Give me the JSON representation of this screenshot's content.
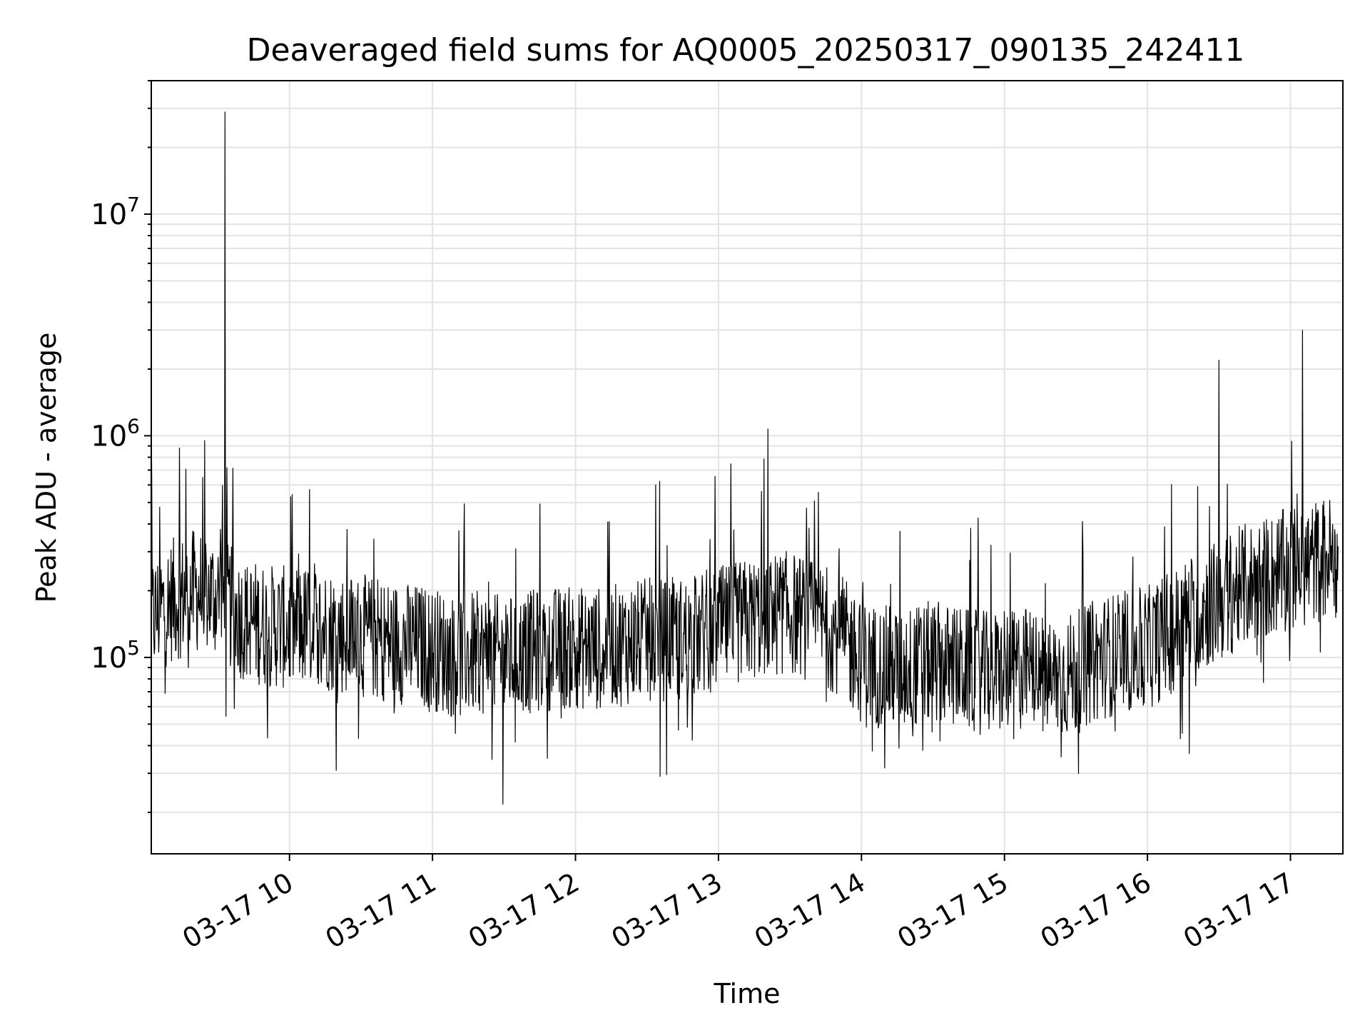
{
  "chart_data": {
    "type": "line",
    "title": "Deaveraged field sums for AQ0005_20250317_090135_242411",
    "xlabel": "Time",
    "ylabel": "Peak ADU - average",
    "yscale": "log",
    "ylim": [
      13000,
      40000000
    ],
    "xlim": [
      "2025-03-17 09:02",
      "2025-03-17 17:22"
    ],
    "grid": true,
    "xticks": [
      {
        "value": "2025-03-17 10:00",
        "label": "03-17 10"
      },
      {
        "value": "2025-03-17 11:00",
        "label": "03-17 11"
      },
      {
        "value": "2025-03-17 12:00",
        "label": "03-17 12"
      },
      {
        "value": "2025-03-17 13:00",
        "label": "03-17 13"
      },
      {
        "value": "2025-03-17 14:00",
        "label": "03-17 14"
      },
      {
        "value": "2025-03-17 15:00",
        "label": "03-17 15"
      },
      {
        "value": "2025-03-17 16:00",
        "label": "03-17 16"
      },
      {
        "value": "2025-03-17 17:00",
        "label": "03-17 17"
      }
    ],
    "yticks": [
      {
        "value": 100000,
        "base": "10",
        "exp": "5"
      },
      {
        "value": 1000000,
        "base": "10",
        "exp": "6"
      },
      {
        "value": 10000000,
        "base": "10",
        "exp": "7"
      }
    ],
    "series": [
      {
        "color": "#000000",
        "x": [
          "2025-03-17 09:02",
          "2025-03-17 09:10",
          "2025-03-17 09:20",
          "2025-03-17 09:30",
          "2025-03-17 09:40",
          "2025-03-17 09:50",
          "2025-03-17 10:00",
          "2025-03-17 10:10",
          "2025-03-17 10:20",
          "2025-03-17 10:30",
          "2025-03-17 10:40",
          "2025-03-17 10:50",
          "2025-03-17 11:00",
          "2025-03-17 11:10",
          "2025-03-17 11:20",
          "2025-03-17 11:30",
          "2025-03-17 11:40",
          "2025-03-17 11:50",
          "2025-03-17 12:00",
          "2025-03-17 12:10",
          "2025-03-17 12:20",
          "2025-03-17 12:30",
          "2025-03-17 12:40",
          "2025-03-17 12:50",
          "2025-03-17 13:00",
          "2025-03-17 13:10",
          "2025-03-17 13:20",
          "2025-03-17 13:30",
          "2025-03-17 13:40",
          "2025-03-17 13:50",
          "2025-03-17 14:00",
          "2025-03-17 14:10",
          "2025-03-17 14:20",
          "2025-03-17 14:30",
          "2025-03-17 14:40",
          "2025-03-17 14:50",
          "2025-03-17 15:00",
          "2025-03-17 15:10",
          "2025-03-17 15:20",
          "2025-03-17 15:30",
          "2025-03-17 15:40",
          "2025-03-17 15:50",
          "2025-03-17 16:00",
          "2025-03-17 16:10",
          "2025-03-17 16:20",
          "2025-03-17 16:30",
          "2025-03-17 16:40",
          "2025-03-17 16:50",
          "2025-03-17 17:00",
          "2025-03-17 17:10",
          "2025-03-17 17:20"
        ],
        "y": [
          150000,
          180000,
          200000,
          190000,
          150000,
          140000,
          135000,
          140000,
          130000,
          125000,
          120000,
          115000,
          110000,
          100000,
          105000,
          100000,
          105000,
          110000,
          110000,
          110000,
          115000,
          120000,
          120000,
          125000,
          135000,
          145000,
          155000,
          160000,
          145000,
          130000,
          95000,
          90000,
          90000,
          95000,
          90000,
          85000,
          85000,
          90000,
          80000,
          85000,
          100000,
          105000,
          110000,
          130000,
          160000,
          180000,
          210000,
          230000,
          250000,
          270000,
          290000
        ],
        "peaks": [
          {
            "x": "2025-03-17 09:33",
            "y": 29000000
          },
          {
            "x": "2025-03-17 16:30",
            "y": 2200000
          },
          {
            "x": "2025-03-17 17:05",
            "y": 3000000
          }
        ]
      }
    ]
  }
}
